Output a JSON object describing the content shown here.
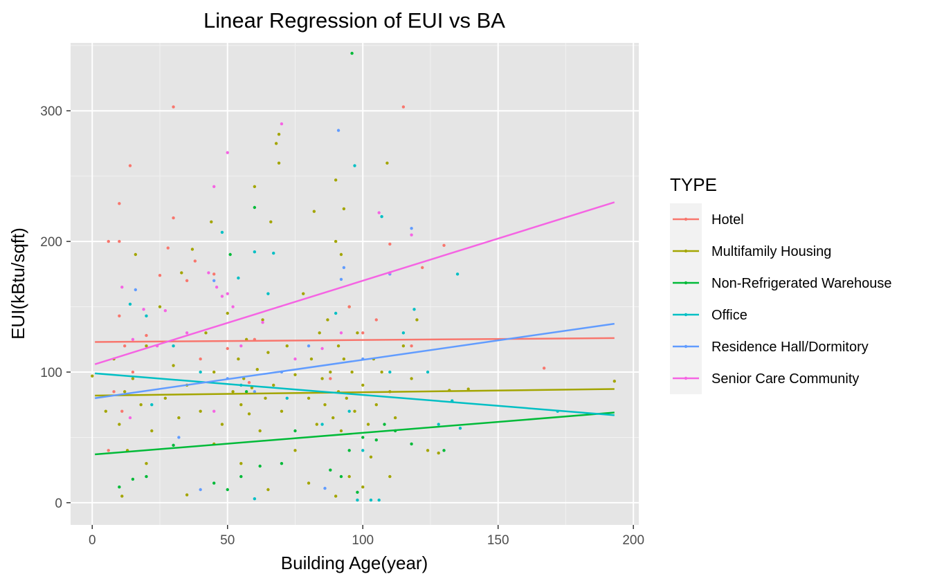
{
  "chart_data": {
    "type": "scatter",
    "title": "Linear Regression of EUI vs BA",
    "xlabel": "Building Age(year)",
    "ylabel": "EUI(kBtu/sqft)",
    "xlim": [
      -8,
      202
    ],
    "ylim": [
      -17,
      352
    ],
    "x_ticks": [
      0,
      50,
      100,
      150,
      200
    ],
    "y_ticks": [
      0,
      100,
      200,
      300
    ],
    "x_tick_labels": [
      "0",
      "50",
      "100",
      "150",
      "200"
    ],
    "y_tick_labels": [
      "0",
      "100",
      "200",
      "300"
    ],
    "grid": true,
    "background": "#e5e5e5",
    "legend": {
      "title": "TYPE",
      "position": "right"
    },
    "series": [
      {
        "name": "Hotel",
        "color": "#f8766d",
        "fit_line": {
          "x": [
            1,
            193
          ],
          "y": [
            123,
            126
          ]
        },
        "points": [
          [
            6,
            200
          ],
          [
            10,
            229
          ],
          [
            10,
            200
          ],
          [
            14,
            258
          ],
          [
            30,
            303
          ],
          [
            30,
            218
          ],
          [
            28,
            195
          ],
          [
            38,
            185
          ],
          [
            45,
            175
          ],
          [
            115,
            303
          ],
          [
            110,
            198
          ],
          [
            122,
            180
          ],
          [
            130,
            197
          ],
          [
            167,
            103
          ],
          [
            10,
            143
          ],
          [
            12,
            120
          ],
          [
            8,
            85
          ],
          [
            15,
            100
          ],
          [
            20,
            128
          ],
          [
            25,
            174
          ],
          [
            35,
            170
          ],
          [
            50,
            118
          ],
          [
            60,
            125
          ],
          [
            95,
            150
          ],
          [
            105,
            140
          ],
          [
            6,
            40
          ],
          [
            11,
            70
          ],
          [
            40,
            110
          ],
          [
            58,
            92
          ],
          [
            88,
            95
          ],
          [
            100,
            130
          ],
          [
            118,
            120
          ]
        ]
      },
      {
        "name": "Multifamily Housing",
        "color": "#a3a500",
        "fit_line": {
          "x": [
            1,
            193
          ],
          "y": [
            82,
            87
          ]
        },
        "points": [
          [
            0,
            97
          ],
          [
            5,
            70
          ],
          [
            8,
            110
          ],
          [
            10,
            60
          ],
          [
            12,
            85
          ],
          [
            13,
            40
          ],
          [
            15,
            95
          ],
          [
            16,
            190
          ],
          [
            18,
            75
          ],
          [
            20,
            120
          ],
          [
            22,
            55
          ],
          [
            25,
            150
          ],
          [
            27,
            80
          ],
          [
            30,
            105
          ],
          [
            32,
            65
          ],
          [
            33,
            176
          ],
          [
            35,
            90
          ],
          [
            37,
            194
          ],
          [
            40,
            70
          ],
          [
            42,
            130
          ],
          [
            44,
            215
          ],
          [
            45,
            100
          ],
          [
            48,
            60
          ],
          [
            50,
            145
          ],
          [
            52,
            85
          ],
          [
            54,
            110
          ],
          [
            55,
            75
          ],
          [
            56,
            95
          ],
          [
            57,
            125
          ],
          [
            58,
            68
          ],
          [
            59,
            88
          ],
          [
            60,
            242
          ],
          [
            61,
            102
          ],
          [
            62,
            55
          ],
          [
            63,
            140
          ],
          [
            64,
            80
          ],
          [
            65,
            115
          ],
          [
            66,
            215
          ],
          [
            67,
            90
          ],
          [
            68,
            275
          ],
          [
            69,
            260
          ],
          [
            69,
            282
          ],
          [
            70,
            70
          ],
          [
            72,
            120
          ],
          [
            75,
            98
          ],
          [
            78,
            160
          ],
          [
            80,
            80
          ],
          [
            81,
            110
          ],
          [
            82,
            223
          ],
          [
            83,
            60
          ],
          [
            84,
            130
          ],
          [
            85,
            95
          ],
          [
            86,
            75
          ],
          [
            87,
            140
          ],
          [
            88,
            100
          ],
          [
            89,
            65
          ],
          [
            90,
            247
          ],
          [
            90,
            200
          ],
          [
            91,
            120
          ],
          [
            91,
            85
          ],
          [
            92,
            190
          ],
          [
            92,
            55
          ],
          [
            93,
            225
          ],
          [
            93,
            110
          ],
          [
            94,
            80
          ],
          [
            95,
            150
          ],
          [
            95,
            20
          ],
          [
            96,
            100
          ],
          [
            97,
            70
          ],
          [
            98,
            130
          ],
          [
            100,
            90
          ],
          [
            102,
            60
          ],
          [
            104,
            110
          ],
          [
            105,
            75
          ],
          [
            107,
            100
          ],
          [
            109,
            260
          ],
          [
            110,
            85
          ],
          [
            112,
            65
          ],
          [
            115,
            120
          ],
          [
            118,
            95
          ],
          [
            120,
            140
          ],
          [
            124,
            40
          ],
          [
            128,
            38
          ],
          [
            132,
            86
          ],
          [
            139,
            87
          ],
          [
            193,
            93
          ],
          [
            11,
            5
          ],
          [
            35,
            6
          ],
          [
            65,
            10
          ],
          [
            90,
            5
          ],
          [
            100,
            12
          ],
          [
            55,
            30
          ],
          [
            80,
            15
          ],
          [
            110,
            20
          ],
          [
            20,
            30
          ],
          [
            45,
            45
          ],
          [
            75,
            40
          ],
          [
            103,
            35
          ]
        ]
      },
      {
        "name": "Non-Refrigerated Warehouse",
        "color": "#00ba38",
        "fit_line": {
          "x": [
            1,
            193
          ],
          "y": [
            37,
            69
          ]
        },
        "points": [
          [
            96,
            344
          ],
          [
            60,
            226
          ],
          [
            51,
            190
          ],
          [
            10,
            12
          ],
          [
            15,
            18
          ],
          [
            20,
            20
          ],
          [
            45,
            15
          ],
          [
            50,
            10
          ],
          [
            55,
            20
          ],
          [
            57,
            85
          ],
          [
            62,
            28
          ],
          [
            70,
            30
          ],
          [
            88,
            25
          ],
          [
            92,
            20
          ],
          [
            95,
            40
          ],
          [
            98,
            8
          ],
          [
            100,
            50
          ],
          [
            105,
            48
          ],
          [
            108,
            60
          ],
          [
            112,
            55
          ],
          [
            118,
            45
          ],
          [
            130,
            40
          ],
          [
            75,
            55
          ],
          [
            30,
            44
          ]
        ]
      },
      {
        "name": "Office",
        "color": "#00bfc4",
        "fit_line": {
          "x": [
            1,
            193
          ],
          "y": [
            99,
            67
          ]
        },
        "points": [
          [
            48,
            207
          ],
          [
            60,
            192
          ],
          [
            67,
            191
          ],
          [
            54,
            172
          ],
          [
            97,
            258
          ],
          [
            107,
            219
          ],
          [
            135,
            175
          ],
          [
            20,
            143
          ],
          [
            14,
            152
          ],
          [
            30,
            120
          ],
          [
            40,
            100
          ],
          [
            55,
            90
          ],
          [
            60,
            3
          ],
          [
            72,
            80
          ],
          [
            85,
            60
          ],
          [
            95,
            70
          ],
          [
            100,
            40
          ],
          [
            103,
            2
          ],
          [
            106,
            2
          ],
          [
            110,
            100
          ],
          [
            115,
            130
          ],
          [
            119,
            148
          ],
          [
            124,
            100
          ],
          [
            128,
            60
          ],
          [
            133,
            78
          ],
          [
            136,
            57
          ],
          [
            172,
            70
          ],
          [
            22,
            75
          ],
          [
            65,
            160
          ],
          [
            90,
            145
          ],
          [
            98,
            2
          ]
        ]
      },
      {
        "name": "Residence Hall/Dormitory",
        "color": "#619cff",
        "fit_line": {
          "x": [
            1,
            193
          ],
          "y": [
            80,
            137
          ]
        },
        "points": [
          [
            91,
            285
          ],
          [
            118,
            210
          ],
          [
            92,
            171
          ],
          [
            45,
            170
          ],
          [
            16,
            163
          ],
          [
            40,
            10
          ],
          [
            32,
            50
          ],
          [
            50,
            95
          ],
          [
            80,
            120
          ],
          [
            93,
            180
          ],
          [
            100,
            110
          ],
          [
            110,
            175
          ],
          [
            86,
            11
          ],
          [
            60,
            85
          ],
          [
            70,
            100
          ]
        ]
      },
      {
        "name": "Senior Care Community",
        "color": "#f564e3",
        "fit_line": {
          "x": [
            1,
            193
          ],
          "y": [
            106,
            230
          ]
        },
        "points": [
          [
            70,
            290
          ],
          [
            50,
            268
          ],
          [
            45,
            242
          ],
          [
            106,
            222
          ],
          [
            118,
            205
          ],
          [
            11,
            165
          ],
          [
            19,
            148
          ],
          [
            27,
            147
          ],
          [
            43,
            176
          ],
          [
            46,
            165
          ],
          [
            48,
            158
          ],
          [
            50,
            160
          ],
          [
            52,
            150
          ],
          [
            55,
            120
          ],
          [
            63,
            138
          ],
          [
            75,
            110
          ],
          [
            85,
            118
          ],
          [
            92,
            130
          ],
          [
            35,
            130
          ],
          [
            24,
            120
          ],
          [
            15,
            125
          ],
          [
            110,
            176
          ],
          [
            14,
            65
          ],
          [
            45,
            70
          ]
        ]
      }
    ]
  }
}
